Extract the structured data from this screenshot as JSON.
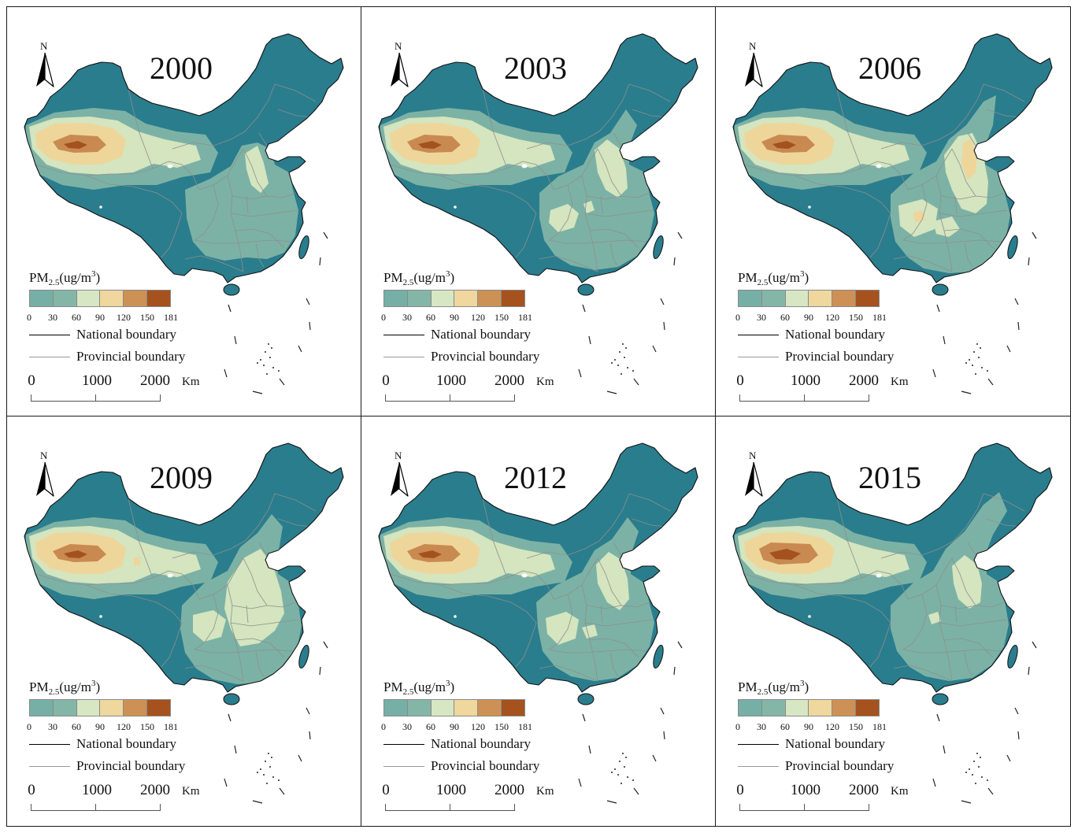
{
  "figure": {
    "north_label": "N",
    "panels": [
      {
        "year": "2000"
      },
      {
        "year": "2003"
      },
      {
        "year": "2006"
      },
      {
        "year": "2009"
      },
      {
        "year": "2012"
      },
      {
        "year": "2015"
      }
    ],
    "legend": {
      "title_main": "PM",
      "title_sub": "2.5",
      "title_unit": "(ug/m",
      "title_sup": "3",
      "title_close": ")",
      "ticks": [
        "0",
        "30",
        "60",
        "90",
        "120",
        "150",
        "181"
      ],
      "swatch_colors": [
        "#76afa5",
        "#84b6a8",
        "#d7e7c3",
        "#efd79e",
        "#cd9156",
        "#a5521f"
      ],
      "national_boundary": "National boundary",
      "provincial_boundary": "Provincial boundary"
    },
    "scale": {
      "labels": [
        "0",
        "1000",
        "2000"
      ],
      "unit": "Km"
    },
    "map_colors": {
      "base": "#2a7d8d",
      "level_1": "#7cb2a5",
      "level_2": "#d4e5bf",
      "level_3": "#eed69b",
      "level_4": "#c98a52",
      "level_5": "#a3521f",
      "water": "#ffffff",
      "national_line": "#111111",
      "provincial_line": "#8e8e8e"
    }
  }
}
